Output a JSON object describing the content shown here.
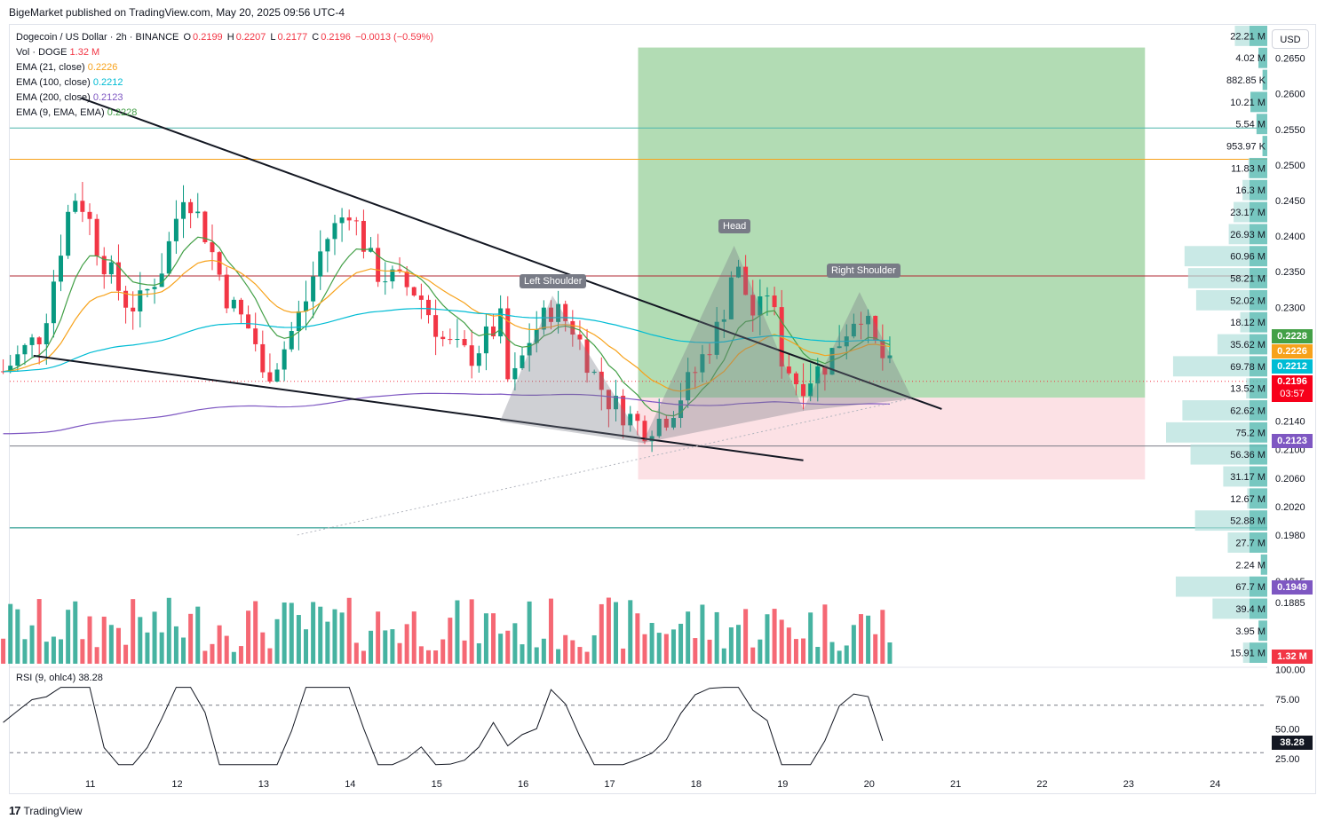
{
  "header": "BigeMarket published on TradingView.com, May 20, 2025 09:56 UTC-4",
  "footer": {
    "brand": "TradingView",
    "logo": "17"
  },
  "currency_button": "USD",
  "legend": {
    "symbol": "Dogecoin / US Dollar · 2h · BINANCE",
    "open_label": "O",
    "open": "0.2199",
    "high_label": "H",
    "high": "0.2207",
    "low_label": "L",
    "low": "0.2177",
    "close_label": "C",
    "close": "0.2196",
    "change": "−0.0013 (−0.59%)",
    "vol_label": "Vol · DOGE",
    "vol_value": "1.32 M",
    "ema21_label": "EMA (21, close)",
    "ema21_value": "0.2226",
    "ema100_label": "EMA (100, close)",
    "ema100_value": "0.2212",
    "ema200_label": "EMA (200, close)",
    "ema200_value": "0.2123",
    "ema9_label": "EMA (9, EMA, EMA)",
    "ema9_value": "0.2228"
  },
  "rsi": {
    "label": "RSI (9, ohlc4)",
    "value": "38.28"
  },
  "patterns": {
    "left_shoulder": "Left Shoulder",
    "head": "Head",
    "right_shoulder": "Right Shoulder"
  },
  "price_tags": {
    "ema9": {
      "text": "0.2228",
      "color": "#43a047"
    },
    "ema21": {
      "text": "0.2226",
      "color": "#f7a21b"
    },
    "ema100": {
      "text": "0.2212",
      "color": "#00bcd4"
    },
    "last": {
      "text": "0.2196",
      "countdown": "03:57",
      "color": "#f7001a"
    },
    "ema200": {
      "text": "0.2123",
      "color": "#7e57c2"
    },
    "ema200_far": {
      "text": "0.1949",
      "color": "#7e57c2"
    },
    "volume": {
      "text": "1.32 M",
      "color": "#f23645"
    }
  },
  "colors": {
    "up": "#26a69a",
    "down": "#f23645",
    "candle_up": "#089981",
    "candle_down": "#f23645",
    "ema9": "#43a047",
    "ema21": "#f7a21b",
    "ema100": "#00bcd4",
    "ema200": "#7e57c2",
    "target_zone": "#a5d6a7",
    "stop_zone": "#fcdce0",
    "orange_line": "#f7a21b",
    "red_line": "#b22833",
    "teal_line": "#4db6ac"
  },
  "chart_data": {
    "type": "candlestick",
    "symbol": "DOGEUSD",
    "interval": "2h",
    "y_axis": {
      "range": [
        0.1872,
        0.2665
      ],
      "ticks": [
        "0.2650",
        "0.2600",
        "0.2550",
        "0.2500",
        "0.2450",
        "0.2400",
        "0.2350",
        "0.2300",
        "0.2140",
        "0.2100",
        "0.2060",
        "0.2020",
        "0.1980",
        "0.1915",
        "0.1885"
      ]
    },
    "x_axis": {
      "ticks": [
        "11",
        "12",
        "13",
        "14",
        "15",
        "16",
        "17",
        "18",
        "19",
        "20",
        "21",
        "22",
        "23",
        "24"
      ]
    },
    "volume_profile_labels": [
      "22.21 M",
      "4.02 M",
      "882.85 K",
      "10.21 M",
      "5.54 M",
      "953.97 K",
      "11.83 M",
      "16.3 M",
      "23.17 M",
      "26.93 M",
      "60.96 M",
      "58.21 M",
      "52.02 M",
      "18.12 M",
      "35.62 M",
      "69.78 M",
      "13.52 M",
      "62.62 M",
      "75.2 M",
      "56.36 M",
      "31.17 M",
      "12.67 M",
      "52.88 M",
      "27.7 M",
      "2.24 M",
      "67.7 M",
      "39.4 M",
      "3.95 M",
      "15.91 M"
    ],
    "volume_profile_values": [
      22.21,
      4.02,
      0.88,
      10.21,
      5.54,
      0.95,
      11.83,
      16.3,
      23.17,
      26.93,
      60.96,
      58.21,
      52.02,
      18.12,
      35.62,
      69.78,
      13.52,
      62.62,
      75.2,
      56.36,
      31.17,
      12.67,
      52.88,
      27.7,
      2.24,
      67.7,
      39.4,
      3.95,
      15.91
    ],
    "horizontal_levels": [
      0.2552,
      0.2508,
      0.2344,
      0.2105,
      0.199
    ],
    "trendlines": {
      "upper": [
        [
          10.9,
          0.2594
        ],
        [
          20.85,
          0.2157
        ]
      ],
      "lower": [
        [
          10.35,
          0.2232
        ],
        [
          19.25,
          0.2085
        ]
      ]
    },
    "position": {
      "entry": 0.2173,
      "target": 0.2665,
      "stop": 0.2058,
      "from_day": 17.34,
      "to_day": 23.2
    },
    "neckline": [
      [
        13.4,
        0.198
      ],
      [
        20.5,
        0.2172
      ]
    ],
    "shoulders": {
      "left_shoulder_day": 16.35,
      "head_day": 18.45,
      "right_shoulder_day": 19.9
    },
    "rsi": {
      "levels": [
        70,
        30
      ],
      "axis_ticks": [
        "100.00",
        "75.00",
        "50.00",
        "25.00"
      ],
      "last": 38.28
    }
  }
}
